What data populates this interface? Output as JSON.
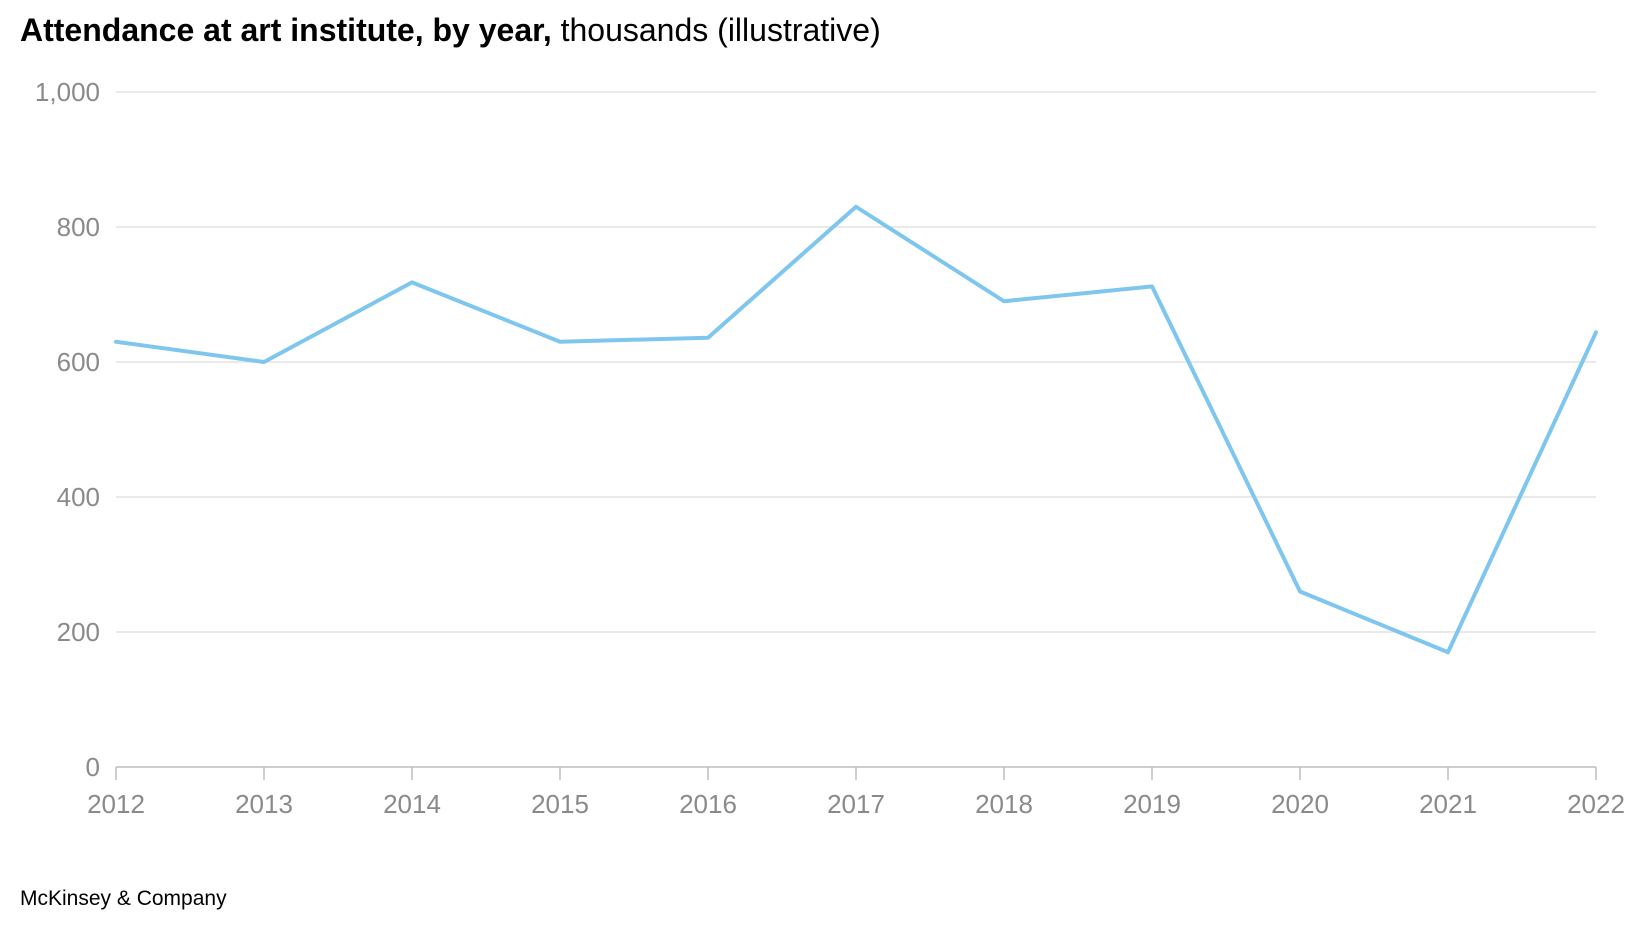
{
  "chart_data": {
    "type": "line",
    "title": "Attendance at art institute, by year,",
    "subtitle": "thousands (illustrative)",
    "xlabel": "",
    "ylabel": "",
    "x": [
      2012,
      2013,
      2014,
      2015,
      2016,
      2017,
      2018,
      2019,
      2020,
      2021,
      2022
    ],
    "x_tick_labels": [
      "2012",
      "2013",
      "2014",
      "2015",
      "2016",
      "2017",
      "2018",
      "2019",
      "2020",
      "2021",
      "2022"
    ],
    "series": [
      {
        "values": [
          630,
          600,
          718,
          630,
          636,
          830,
          690,
          712,
          260,
          170,
          644
        ],
        "color": "#7fc6ee"
      }
    ],
    "ylim": [
      0,
      1000
    ],
    "y_ticks": [
      0,
      200,
      400,
      600,
      800,
      1000
    ],
    "y_tick_labels": [
      "0",
      "200",
      "400",
      "600",
      "800",
      "1,000"
    ],
    "grid": true,
    "legend": "none",
    "colors": {
      "line": "#7fc6ee",
      "grid": "#e3e3e3",
      "axis": "#bdbdbd",
      "tick_text": "#8a8a8a"
    }
  },
  "footer": {
    "source": "McKinsey & Company"
  }
}
